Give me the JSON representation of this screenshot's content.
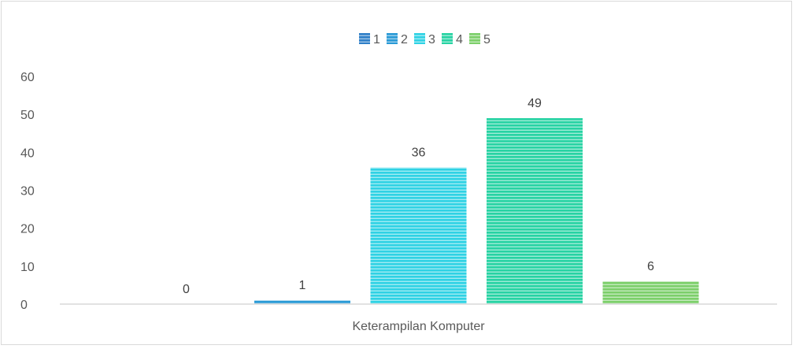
{
  "chart_data": {
    "type": "bar",
    "title": "",
    "xlabel": "",
    "ylabel": "",
    "categories": [
      "Keterampilan Komputer"
    ],
    "series": [
      {
        "name": "1",
        "values": [
          0
        ],
        "color": "#2f7fc8"
      },
      {
        "name": "2",
        "values": [
          1
        ],
        "color": "#2a9ad6"
      },
      {
        "name": "3",
        "values": [
          36
        ],
        "color": "#2fd2e4"
      },
      {
        "name": "4",
        "values": [
          49
        ],
        "color": "#27d3a3"
      },
      {
        "name": "5",
        "values": [
          6
        ],
        "color": "#7ccf6a"
      }
    ],
    "ylim": [
      0,
      60
    ],
    "yticks": [
      0,
      10,
      20,
      30,
      40,
      50,
      60
    ],
    "data_labels": [
      "0",
      "1",
      "36",
      "49",
      "6"
    ],
    "grid": false,
    "legend": "top-center",
    "bar_pattern": "horizontal-stripes"
  }
}
